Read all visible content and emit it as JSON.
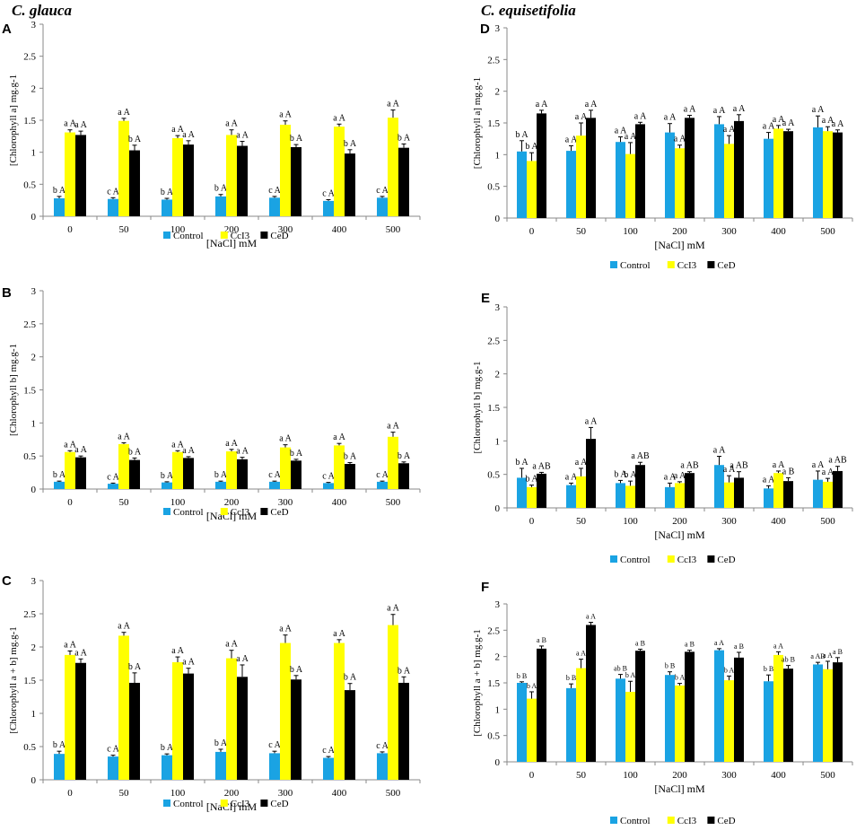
{
  "left_title": "C. glauca",
  "right_title": "C. equisetifolia",
  "legend": {
    "labels": [
      "Control",
      "CcI3",
      "CeD"
    ],
    "colors": [
      "#1aa3e3",
      "#ffff00",
      "#000000"
    ]
  },
  "chart_data": [
    {
      "type": "bar",
      "panel": "A",
      "categories": [
        "0",
        "50",
        "100",
        "200",
        "300",
        "400",
        "500"
      ],
      "xlabel": "[NaCl] mM",
      "ylabel": "[Chlorophyll a] mg.g-1",
      "ylim": [
        0,
        3
      ],
      "yticks": [
        "0",
        "0.5",
        "1",
        "1.5",
        "2",
        "2.5",
        "3"
      ],
      "series": [
        {
          "name": "Control",
          "values": [
            0.28,
            0.27,
            0.26,
            0.31,
            0.29,
            0.24,
            0.29
          ],
          "errors": [
            0.03,
            0.02,
            0.02,
            0.03,
            0.02,
            0.02,
            0.02
          ],
          "labels": [
            "b A",
            "c A",
            "b A",
            "b A",
            "c A",
            "c A",
            "c A"
          ]
        },
        {
          "name": "CcI3",
          "values": [
            1.31,
            1.49,
            1.22,
            1.27,
            1.43,
            1.4,
            1.54
          ],
          "errors": [
            0.04,
            0.04,
            0.04,
            0.08,
            0.06,
            0.04,
            0.12
          ],
          "labels": [
            "a A",
            "a A",
            "a A",
            "a A",
            "a A",
            "a A",
            "a A"
          ]
        },
        {
          "name": "CeD",
          "values": [
            1.27,
            1.03,
            1.12,
            1.1,
            1.08,
            0.98,
            1.07
          ],
          "errors": [
            0.06,
            0.08,
            0.06,
            0.07,
            0.04,
            0.06,
            0.06
          ],
          "labels": [
            "a A",
            "b A",
            "a A",
            "a A",
            "b A",
            "b A",
            "b A"
          ]
        }
      ]
    },
    {
      "type": "bar",
      "panel": "B",
      "categories": [
        "0",
        "50",
        "100",
        "200",
        "300",
        "400",
        "500"
      ],
      "xlabel": "[NaCl] mM",
      "ylabel": "[Chlorophyll b] mg.g-1",
      "ylim": [
        0,
        3
      ],
      "yticks": [
        "0",
        "0.5",
        "1",
        "1.5",
        "2",
        "2.5",
        "3"
      ],
      "series": [
        {
          "name": "Control",
          "values": [
            0.11,
            0.08,
            0.1,
            0.11,
            0.11,
            0.09,
            0.11
          ],
          "errors": [
            0.01,
            0.01,
            0.01,
            0.01,
            0.01,
            0.01,
            0.01
          ],
          "labels": [
            "b A",
            "c A",
            "b A",
            "b A",
            "c A",
            "c A",
            "c A"
          ]
        },
        {
          "name": "CcI3",
          "values": [
            0.56,
            0.68,
            0.56,
            0.57,
            0.63,
            0.66,
            0.79
          ],
          "errors": [
            0.02,
            0.02,
            0.02,
            0.03,
            0.04,
            0.03,
            0.07
          ],
          "labels": [
            "a A",
            "a A",
            "a A",
            "a A",
            "a A",
            "a A",
            "a A"
          ]
        },
        {
          "name": "CeD",
          "values": [
            0.48,
            0.44,
            0.47,
            0.45,
            0.43,
            0.38,
            0.39
          ],
          "errors": [
            0.02,
            0.03,
            0.02,
            0.03,
            0.02,
            0.02,
            0.02
          ],
          "labels": [
            "a A",
            "b A",
            "a A",
            "a A",
            "b A",
            "b A",
            "b A"
          ]
        }
      ]
    },
    {
      "type": "bar",
      "panel": "C",
      "categories": [
        "0",
        "50",
        "100",
        "200",
        "300",
        "400",
        "500"
      ],
      "xlabel": "[NaCl] mM",
      "ylabel": "[Chlorophyll a + b] mg.g-1",
      "ylim": [
        0,
        3
      ],
      "yticks": [
        "0",
        "0.5",
        "1",
        "1.5",
        "2",
        "2.5",
        "3"
      ],
      "series": [
        {
          "name": "Control",
          "values": [
            0.39,
            0.35,
            0.37,
            0.42,
            0.4,
            0.33,
            0.4
          ],
          "errors": [
            0.04,
            0.02,
            0.02,
            0.04,
            0.03,
            0.02,
            0.02
          ],
          "labels": [
            "b A",
            "c A",
            "b A",
            "b A",
            "c A",
            "c A",
            "c A"
          ]
        },
        {
          "name": "CcI3",
          "values": [
            1.88,
            2.17,
            1.77,
            1.83,
            2.06,
            2.06,
            2.33
          ],
          "errors": [
            0.06,
            0.05,
            0.08,
            0.12,
            0.12,
            0.05,
            0.16
          ],
          "labels": [
            "a A",
            "a A",
            "a A",
            "a A",
            "a A",
            "a A",
            "a A"
          ]
        },
        {
          "name": "CeD",
          "values": [
            1.76,
            1.46,
            1.6,
            1.55,
            1.51,
            1.35,
            1.46
          ],
          "errors": [
            0.06,
            0.15,
            0.08,
            0.18,
            0.06,
            0.1,
            0.09
          ],
          "labels": [
            "a A",
            "b A",
            "a A",
            "a A",
            "b A",
            "b A",
            "b A"
          ]
        }
      ]
    },
    {
      "type": "bar",
      "panel": "D",
      "categories": [
        "0",
        "50",
        "100",
        "200",
        "300",
        "400",
        "500"
      ],
      "xlabel": "[NaCl] mM",
      "ylabel": "[Chlorophyll a] mg.g-1",
      "ylim": [
        0,
        3
      ],
      "yticks": [
        "0",
        "0.5",
        "1",
        "1.5",
        "2",
        "2.5",
        "3"
      ],
      "series": [
        {
          "name": "Control",
          "values": [
            1.05,
            1.06,
            1.2,
            1.35,
            1.48,
            1.25,
            1.43
          ],
          "errors": [
            0.17,
            0.08,
            0.08,
            0.14,
            0.12,
            0.1,
            0.18
          ],
          "labels": [
            "b A",
            "a A",
            "a A",
            "a A",
            "a A",
            "a A",
            "a A"
          ]
        },
        {
          "name": "CcI3",
          "values": [
            0.9,
            1.3,
            1.01,
            1.1,
            1.17,
            1.41,
            1.37
          ],
          "errors": [
            0.13,
            0.2,
            0.18,
            0.05,
            0.13,
            0.05,
            0.07
          ],
          "labels": [
            "b A",
            "a A",
            "a A",
            "a A",
            "a A",
            "a A",
            "a A"
          ]
        },
        {
          "name": "CeD",
          "values": [
            1.65,
            1.58,
            1.48,
            1.58,
            1.53,
            1.37,
            1.35
          ],
          "errors": [
            0.05,
            0.12,
            0.03,
            0.04,
            0.1,
            0.03,
            0.04
          ],
          "labels": [
            "a A",
            "a A",
            "a A",
            "a A",
            "a A",
            "a A",
            "a A"
          ]
        }
      ]
    },
    {
      "type": "bar",
      "panel": "E",
      "categories": [
        "0",
        "50",
        "100",
        "200",
        "300",
        "400",
        "500"
      ],
      "xlabel": "[NaCl] mM",
      "ylabel": "[Chlorophyll b] mg.g-1",
      "ylim": [
        0,
        3
      ],
      "yticks": [
        "0",
        "0.5",
        "1",
        "1.5",
        "2",
        "2.5",
        "3"
      ],
      "series": [
        {
          "name": "Control",
          "values": [
            0.45,
            0.34,
            0.37,
            0.31,
            0.64,
            0.29,
            0.42
          ],
          "errors": [
            0.14,
            0.03,
            0.04,
            0.06,
            0.13,
            0.04,
            0.13
          ],
          "labels": [
            "b A",
            "a A",
            "b A",
            "a A",
            "a A",
            "a A",
            "a A"
          ]
        },
        {
          "name": "CcI3",
          "values": [
            0.31,
            0.47,
            0.33,
            0.37,
            0.38,
            0.52,
            0.39
          ],
          "errors": [
            0.03,
            0.12,
            0.07,
            0.02,
            0.1,
            0.03,
            0.05
          ],
          "labels": [
            "b A",
            "a A",
            "b A",
            "a A",
            "a A",
            "a A",
            "a A"
          ]
        },
        {
          "name": "CeD",
          "values": [
            0.51,
            1.03,
            0.64,
            0.52,
            0.45,
            0.4,
            0.55
          ],
          "errors": [
            0.02,
            0.17,
            0.04,
            0.02,
            0.09,
            0.05,
            0.07
          ],
          "labels": [
            "a AB",
            "a A",
            "a AB",
            "a AB",
            "a AB",
            "a B",
            "a AB"
          ]
        }
      ]
    },
    {
      "type": "bar",
      "panel": "F",
      "categories": [
        "0",
        "50",
        "100",
        "200",
        "300",
        "400",
        "500"
      ],
      "xlabel": "[NaCl] mM",
      "ylabel": "[Chlorophyll a + b] mg.g-1",
      "ylim": [
        0,
        3
      ],
      "yticks": [
        "0",
        "0.5",
        "1",
        "1.5",
        "2",
        "2.5",
        "3"
      ],
      "series": [
        {
          "name": "Control",
          "values": [
            1.5,
            1.4,
            1.58,
            1.65,
            2.12,
            1.53,
            1.85
          ],
          "errors": [
            0.02,
            0.08,
            0.08,
            0.06,
            0.03,
            0.12,
            0.04
          ],
          "labels": [
            "b B",
            "b B",
            "ab B",
            "b B",
            "a A",
            "b B",
            "a AB"
          ]
        },
        {
          "name": "CcI3",
          "values": [
            1.2,
            1.78,
            1.33,
            1.45,
            1.55,
            2.03,
            1.76
          ],
          "errors": [
            0.13,
            0.17,
            0.2,
            0.04,
            0.08,
            0.06,
            0.15
          ],
          "labels": [
            "b A",
            "a A",
            "b A",
            "b A",
            "b A",
            "a A",
            "a A"
          ]
        },
        {
          "name": "CeD",
          "values": [
            2.15,
            2.6,
            2.11,
            2.09,
            1.98,
            1.77,
            1.89
          ],
          "errors": [
            0.05,
            0.05,
            0.03,
            0.03,
            0.1,
            0.06,
            0.09
          ],
          "labels": [
            "a B",
            "a A",
            "a B",
            "a B",
            "a B",
            "ab B",
            "a B"
          ]
        }
      ]
    }
  ]
}
